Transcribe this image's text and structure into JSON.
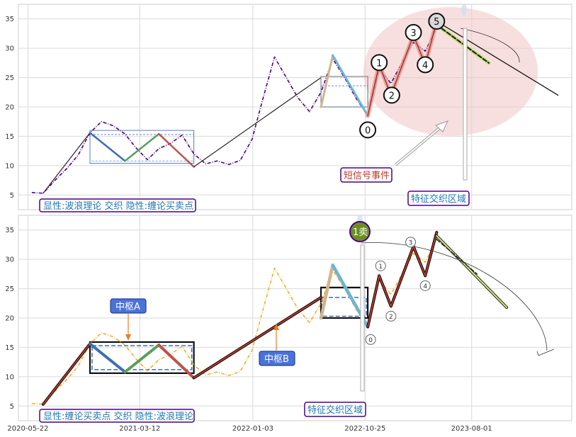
{
  "chart_data": [
    {
      "type": "line",
      "panel": "top",
      "title": "",
      "xlabel": "",
      "ylabel": "",
      "ylim": [
        2.5,
        37.5
      ],
      "yticks": [
        5,
        10,
        15,
        20,
        25,
        30,
        35
      ],
      "grid": true,
      "colors": {
        "price": "#4b0082",
        "accent_fill": "#f2c4c4"
      },
      "series": [
        {
          "values": [
            [
              "2020-06-01",
              5.4
            ],
            [
              "2020-07-01",
              5.3
            ],
            [
              "2020-08-01",
              7.5
            ],
            [
              "2020-09-01",
              9.5
            ],
            [
              "2020-10-01",
              11.8
            ],
            [
              "2020-11-01",
              15.6
            ],
            [
              "2020-12-01",
              17.5
            ],
            [
              "2021-01-01",
              16.8
            ],
            [
              "2021-02-01",
              15.4
            ],
            [
              "2021-03-01",
              13.1
            ],
            [
              "2021-04-01",
              11.0
            ],
            [
              "2021-05-01",
              12.9
            ],
            [
              "2021-06-01",
              13.8
            ],
            [
              "2021-07-01",
              15.2
            ],
            [
              "2021-08-01",
              12.0
            ],
            [
              "2021-09-01",
              10.3
            ],
            [
              "2021-10-01",
              10.8
            ],
            [
              "2021-11-01",
              10.2
            ],
            [
              "2021-12-01",
              10.9
            ],
            [
              "2022-01-01",
              14.5
            ],
            [
              "2022-02-01",
              22.0
            ],
            [
              "2022-03-01",
              28.5
            ],
            [
              "2022-04-01",
              25.0
            ],
            [
              "2022-05-01",
              21.6
            ],
            [
              "2022-06-01",
              19.2
            ],
            [
              "2022-07-01",
              22.5
            ],
            [
              "2022-08-01",
              28.2
            ],
            [
              "2022-09-01",
              25.0
            ],
            [
              "2022-10-01",
              21.5
            ],
            [
              "2022-11-01",
              18.5
            ],
            [
              "2022-12-01",
              26.5
            ],
            [
              "2023-01-01",
              24.0
            ],
            [
              "2023-02-01",
              27.8
            ],
            [
              "2023-03-01",
              31.0
            ],
            [
              "2023-04-01",
              29.5
            ],
            [
              "2023-05-01",
              33.5
            ]
          ]
        }
      ],
      "wave_labels": [
        "0",
        "1",
        "2",
        "3",
        "4",
        "5"
      ],
      "annotations": [
        "显性:波浪理论 交织 隐性:缠论买卖点",
        "短信号事件",
        "特征交织区域"
      ]
    },
    {
      "type": "line",
      "panel": "bottom",
      "title": "",
      "xlabel": "",
      "ylabel": "",
      "ylim": [
        2.5,
        37.5
      ],
      "yticks": [
        5,
        10,
        15,
        20,
        25,
        30,
        35
      ],
      "xticks": [
        "2020-05-22",
        "2021-03-12",
        "2022-01-03",
        "2022-10-25",
        "2023-08-01"
      ],
      "grid": true,
      "colors": {
        "price": "#f0b030",
        "signal": "#6b8e23"
      },
      "series": [
        {
          "values": [
            [
              "2020-06-01",
              5.4
            ],
            [
              "2020-07-01",
              5.3
            ],
            [
              "2020-08-01",
              7.5
            ],
            [
              "2020-09-01",
              9.5
            ],
            [
              "2020-10-01",
              11.8
            ],
            [
              "2020-11-01",
              15.6
            ],
            [
              "2020-12-01",
              17.5
            ],
            [
              "2021-01-01",
              16.8
            ],
            [
              "2021-02-01",
              15.4
            ],
            [
              "2021-03-01",
              13.1
            ],
            [
              "2021-04-01",
              11.0
            ],
            [
              "2021-05-01",
              12.9
            ],
            [
              "2021-06-01",
              13.8
            ],
            [
              "2021-07-01",
              15.2
            ],
            [
              "2021-08-01",
              12.0
            ],
            [
              "2021-09-01",
              10.3
            ],
            [
              "2021-10-01",
              10.8
            ],
            [
              "2021-11-01",
              10.2
            ],
            [
              "2021-12-01",
              10.9
            ],
            [
              "2022-01-01",
              14.5
            ],
            [
              "2022-02-01",
              22.0
            ],
            [
              "2022-03-01",
              28.5
            ],
            [
              "2022-04-01",
              25.0
            ],
            [
              "2022-05-01",
              21.6
            ],
            [
              "2022-06-01",
              19.2
            ],
            [
              "2022-07-01",
              22.5
            ],
            [
              "2022-08-01",
              28.2
            ],
            [
              "2022-09-01",
              25.0
            ],
            [
              "2022-10-01",
              21.5
            ],
            [
              "2022-11-01",
              18.5
            ],
            [
              "2022-12-01",
              26.5
            ],
            [
              "2023-01-01",
              24.0
            ],
            [
              "2023-02-01",
              27.8
            ],
            [
              "2023-03-01",
              31.0
            ],
            [
              "2023-04-01",
              29.5
            ],
            [
              "2023-05-01",
              33.5
            ]
          ]
        }
      ],
      "wave_labels": [
        "0",
        "1",
        "2",
        "3",
        "4"
      ],
      "annotations": [
        "中枢A",
        "中枢B",
        "1卖",
        "显性:缠论买卖点 交织 隐性:波浪理论",
        "特征交织区域"
      ]
    }
  ]
}
